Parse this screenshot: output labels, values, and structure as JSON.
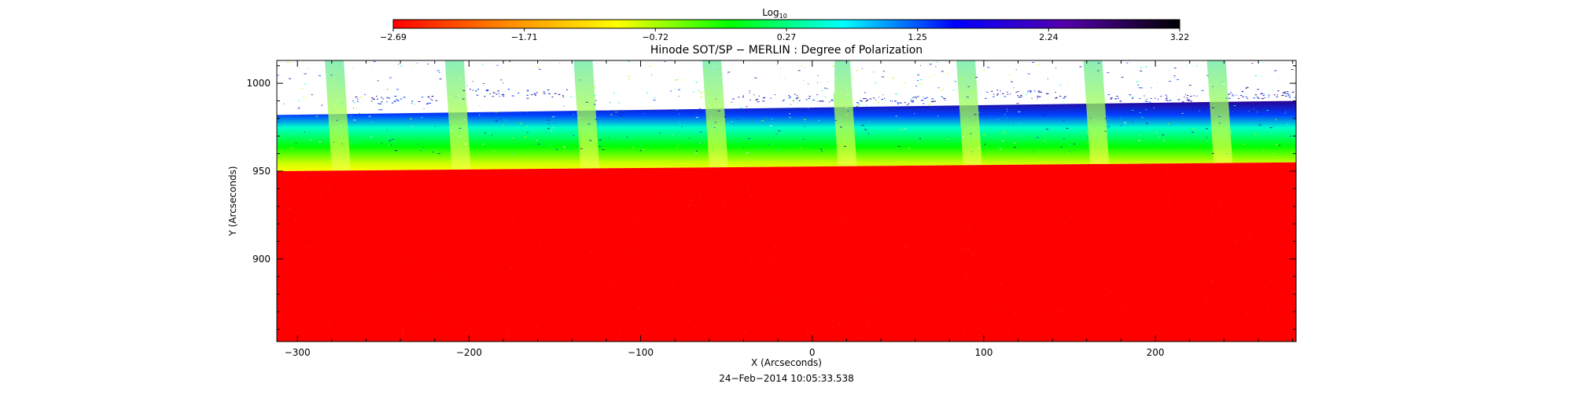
{
  "chart_data": {
    "type": "heatmap",
    "title": "Hinode SOT/SP − MERLIN : Degree of Polarization",
    "xlabel": "X (Arcseconds)",
    "ylabel": "Y (Arcseconds)",
    "timestamp": "24−Feb−2014  10:05:33.538",
    "xlim": [
      -312,
      282
    ],
    "ylim": [
      853,
      1013
    ],
    "x_ticks": [
      {
        "value": -300,
        "label": "−300"
      },
      {
        "value": -200,
        "label": "−200"
      },
      {
        "value": -100,
        "label": "−100"
      },
      {
        "value": 0,
        "label": "0"
      },
      {
        "value": 100,
        "label": "100"
      },
      {
        "value": 200,
        "label": "200"
      }
    ],
    "y_ticks": [
      {
        "value": 900,
        "label": "900"
      },
      {
        "value": 950,
        "label": "950"
      },
      {
        "value": 1000,
        "label": "1000"
      }
    ],
    "colorbar": {
      "title_base": "Log",
      "title_sub": "10",
      "range": [
        -2.69,
        3.22
      ],
      "ticks": [
        "−2.69",
        "−1.71",
        "−0.72",
        "0.27",
        "1.25",
        "2.24",
        "3.22"
      ],
      "colors": [
        "#ff0000",
        "#ff8800",
        "#ffff00",
        "#00ff00",
        "#00ffff",
        "#0000ff",
        "#5500aa",
        "#000000"
      ]
    },
    "limb_y": [
      [
        -312,
        950
      ],
      [
        282,
        955
      ]
    ],
    "scan_seam_x": [
      -280,
      -210,
      -135,
      -60,
      15,
      88,
      162,
      234
    ],
    "saturated_regions": [
      {
        "x0": -268,
        "x1": -218,
        "y0": 992,
        "y1": 1013
      },
      {
        "x0": -200,
        "x1": -143,
        "y0": 996,
        "y1": 1013
      },
      {
        "x0": -48,
        "x1": 13,
        "y0": 993,
        "y1": 1013
      },
      {
        "x0": 25,
        "x1": 78,
        "y0": 992,
        "y1": 1013
      },
      {
        "x0": 100,
        "x1": 148,
        "y0": 995,
        "y1": 1013
      },
      {
        "x0": 172,
        "x1": 225,
        "y0": 993,
        "y1": 1013
      },
      {
        "x0": 242,
        "x1": 282,
        "y0": 995,
        "y1": 1013
      }
    ]
  }
}
